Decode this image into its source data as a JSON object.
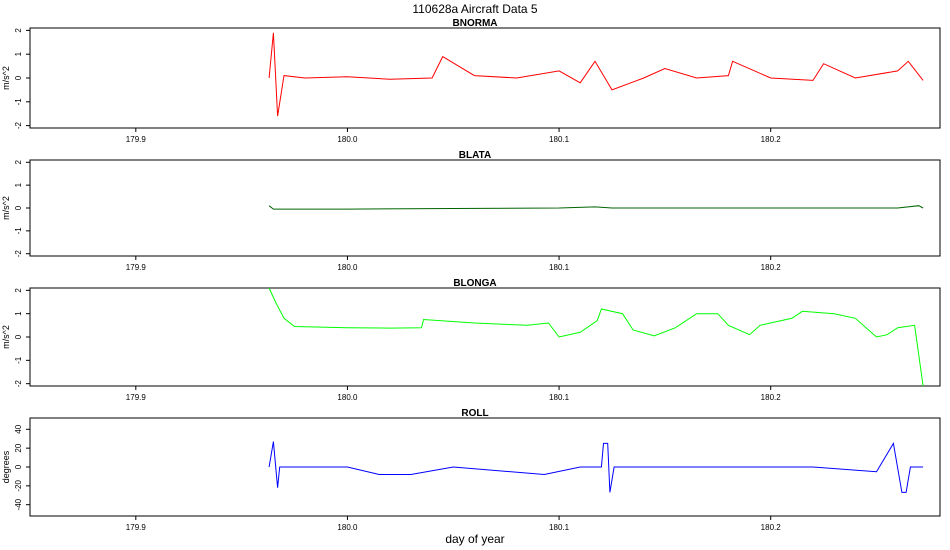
{
  "title": "110628a   Aircraft Data 5",
  "xlabel": "day of year",
  "chart_data": [
    {
      "type": "line",
      "title": "BNORMA",
      "ylabel": "m/s^2",
      "color": "#ff0000",
      "xlim": [
        179.85,
        180.28
      ],
      "ylim": [
        -2.1,
        2.1
      ],
      "xticks": [
        "179.9",
        "180.0",
        "180.1",
        "180.2"
      ],
      "yticks": [
        "-2",
        "-1",
        "0",
        "1",
        "2"
      ],
      "series": [
        {
          "x": [
            179.963,
            179.965,
            179.967,
            179.97,
            179.98,
            180.0,
            180.02,
            180.04,
            180.045,
            180.06,
            180.08,
            180.1,
            180.11,
            180.117,
            180.125,
            180.14,
            180.15,
            180.165,
            180.18,
            180.182,
            180.2,
            180.22,
            180.225,
            180.24,
            180.26,
            180.265,
            180.272
          ],
          "y": [
            0.0,
            1.9,
            -1.6,
            0.1,
            0.0,
            0.05,
            -0.05,
            0.0,
            0.9,
            0.1,
            0.0,
            0.3,
            -0.2,
            0.7,
            -0.5,
            0.0,
            0.4,
            0.0,
            0.1,
            0.7,
            0.0,
            -0.1,
            0.6,
            0.0,
            0.3,
            0.7,
            -0.1
          ]
        }
      ]
    },
    {
      "type": "line",
      "title": "BLATA",
      "ylabel": "m/s^2",
      "color": "#006400",
      "xlim": [
        179.85,
        180.28
      ],
      "ylim": [
        -2.1,
        2.1
      ],
      "xticks": [
        "179.9",
        "180.0",
        "180.1",
        "180.2"
      ],
      "yticks": [
        "-2",
        "-1",
        "0",
        "1",
        "2"
      ],
      "series": [
        {
          "x": [
            179.963,
            179.965,
            179.97,
            180.0,
            180.05,
            180.1,
            180.117,
            180.125,
            180.15,
            180.2,
            180.22,
            180.26,
            180.27,
            180.272
          ],
          "y": [
            0.1,
            -0.05,
            -0.05,
            -0.05,
            -0.02,
            0.0,
            0.05,
            0.0,
            0.0,
            0.0,
            0.0,
            0.0,
            0.1,
            0.0
          ]
        }
      ]
    },
    {
      "type": "line",
      "title": "BLONGA",
      "ylabel": "m/s^2",
      "color": "#00ff00",
      "xlim": [
        179.85,
        180.28
      ],
      "ylim": [
        -2.1,
        2.1
      ],
      "xticks": [
        "179.9",
        "180.0",
        "180.1",
        "180.2"
      ],
      "yticks": [
        "-2",
        "-1",
        "0",
        "1",
        "2"
      ],
      "series": [
        {
          "x": [
            179.963,
            179.966,
            179.97,
            179.975,
            180.0,
            180.02,
            180.035,
            180.036,
            180.06,
            180.085,
            180.095,
            180.1,
            180.11,
            180.118,
            180.12,
            180.13,
            180.135,
            180.145,
            180.155,
            180.165,
            180.175,
            180.18,
            180.19,
            180.195,
            180.21,
            180.215,
            180.23,
            180.24,
            180.25,
            180.255,
            180.26,
            180.268,
            180.272
          ],
          "y": [
            2.1,
            1.5,
            0.8,
            0.45,
            0.4,
            0.38,
            0.4,
            0.75,
            0.6,
            0.5,
            0.6,
            0.0,
            0.2,
            0.7,
            1.2,
            1.0,
            0.3,
            0.05,
            0.4,
            1.0,
            1.0,
            0.5,
            0.1,
            0.5,
            0.8,
            1.1,
            1.0,
            0.8,
            0.0,
            0.1,
            0.4,
            0.5,
            -2.1
          ]
        }
      ]
    },
    {
      "type": "line",
      "title": "ROLL",
      "ylabel": "degrees",
      "color": "#0000ff",
      "xlim": [
        179.85,
        180.28
      ],
      "ylim": [
        -52,
        52
      ],
      "xticks": [
        "179.9",
        "180.0",
        "180.1",
        "180.2"
      ],
      "yticks": [
        "-40",
        "-20",
        "0",
        "20",
        "40"
      ],
      "series": [
        {
          "x": [
            179.963,
            179.965,
            179.967,
            179.968,
            179.975,
            179.985,
            180.0,
            180.015,
            180.03,
            180.05,
            180.093,
            180.11,
            180.12,
            180.121,
            180.123,
            180.124,
            180.126,
            180.15,
            180.18,
            180.22,
            180.25,
            180.258,
            180.262,
            180.264,
            180.266,
            180.268,
            180.272
          ],
          "y": [
            0.0,
            27.0,
            -22.0,
            0.0,
            0.0,
            0.0,
            0.0,
            -8.0,
            -8.0,
            0.0,
            -8.0,
            0.0,
            0.0,
            25.0,
            25.0,
            -27.0,
            0.0,
            0.0,
            0.0,
            0.0,
            -5.0,
            25.0,
            -27.0,
            -27.0,
            0.0,
            0.0,
            0.0
          ]
        }
      ]
    }
  ]
}
